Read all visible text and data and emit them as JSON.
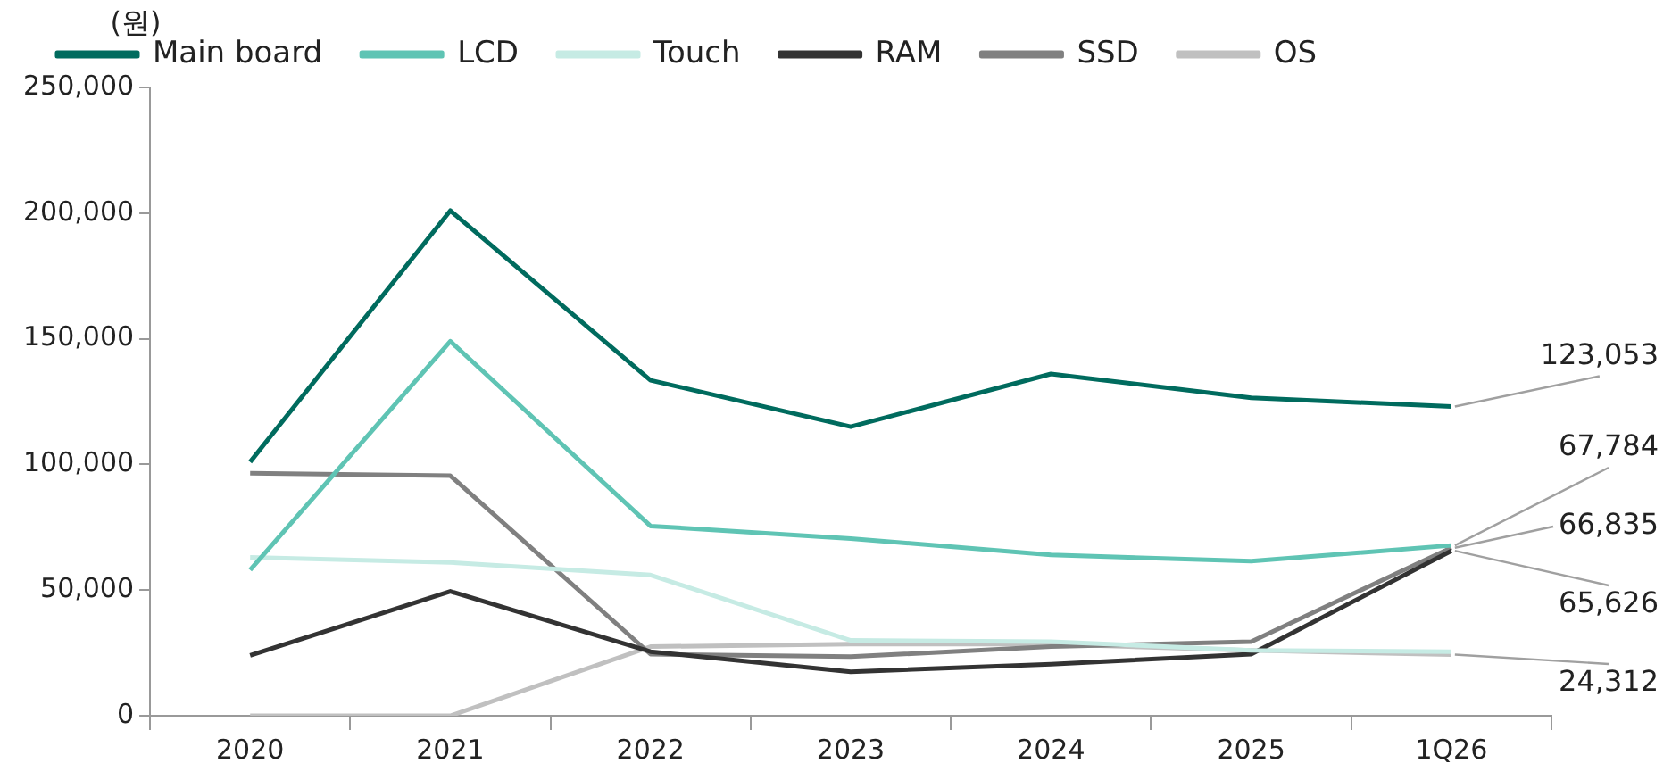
{
  "chart_data": {
    "type": "line",
    "ylabel": "(원)",
    "categories": [
      "2020",
      "2021",
      "2022",
      "2023",
      "2024",
      "2025",
      "1Q26"
    ],
    "series": [
      {
        "name": "Main board",
        "color": "#006b5e",
        "values": [
          101000,
          201000,
          133500,
          115000,
          136000,
          126500,
          123053
        ],
        "value_labels": [
          null,
          null,
          null,
          null,
          null,
          null,
          "123,053"
        ]
      },
      {
        "name": "LCD",
        "color": "#5fc4b4",
        "values": [
          58000,
          149000,
          75500,
          70500,
          64000,
          61500,
          67784
        ],
        "value_labels": [
          null,
          null,
          null,
          null,
          null,
          null,
          "67,784"
        ]
      },
      {
        "name": "Touch",
        "color": "#c6ebe4",
        "values": [
          63000,
          61000,
          56000,
          30000,
          29500,
          26000,
          25500
        ]
      },
      {
        "name": "RAM",
        "color": "#333333",
        "values": [
          24000,
          49500,
          25500,
          17500,
          20500,
          24500,
          65626
        ],
        "value_labels": [
          null,
          null,
          null,
          null,
          null,
          null,
          "65,626"
        ]
      },
      {
        "name": "SSD",
        "color": "#808080",
        "values": [
          96500,
          95500,
          24500,
          23500,
          27500,
          29500,
          66835
        ],
        "value_labels": [
          null,
          null,
          null,
          null,
          null,
          null,
          "66,835"
        ]
      },
      {
        "name": "OS",
        "color": "#c0c0c0",
        "values": [
          0,
          0,
          27500,
          28500,
          28500,
          26000,
          24312
        ],
        "value_labels": [
          null,
          null,
          null,
          null,
          null,
          null,
          "24,312"
        ]
      }
    ],
    "ylim": [
      0,
      250000
    ],
    "yticks": [
      0,
      {
        "value": 50000,
        "label": "50,000"
      },
      {
        "value": 100000,
        "label": "100,000"
      },
      {
        "value": 150000,
        "label": "150,000"
      },
      {
        "value": 200000,
        "label": "200,000"
      },
      {
        "value": 250000,
        "label": "250,000"
      }
    ],
    "grid": false,
    "legend": "top",
    "marker": "none",
    "line_style": "solid"
  }
}
